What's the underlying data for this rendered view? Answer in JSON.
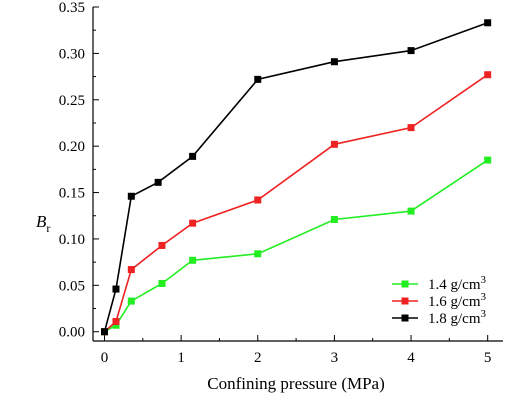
{
  "chart_data": {
    "type": "line",
    "title": "",
    "xlabel": "Confining pressure (MPa)",
    "ylabel": "B",
    "ylabel_subscript": "r",
    "xlim": [
      -0.15,
      5.2
    ],
    "ylim": [
      -0.01,
      0.35
    ],
    "x_ticks": [
      "0",
      "1",
      "2",
      "3",
      "4",
      "5"
    ],
    "y_ticks": [
      "0.00",
      "0.05",
      "0.10",
      "0.15",
      "0.20",
      "0.25",
      "0.30",
      "0.35"
    ],
    "grid": false,
    "legend_position": "bottom-right",
    "series": [
      {
        "name": "1.4 g/cm3",
        "label_main": "1.4 g/cm",
        "label_sup": "3",
        "color": "#22ee22",
        "x": [
          0,
          0.15,
          0.35,
          0.75,
          1.15,
          2,
          3,
          4,
          5
        ],
        "y": [
          0.0,
          0.007,
          0.033,
          0.052,
          0.077,
          0.084,
          0.121,
          0.13,
          0.185
        ]
      },
      {
        "name": "1.6 g/cm3",
        "label_main": "1.6 g/cm",
        "label_sup": "3",
        "color": "#ee2222",
        "x": [
          0,
          0.15,
          0.35,
          0.75,
          1.15,
          2,
          3,
          4,
          5
        ],
        "y": [
          0.0,
          0.011,
          0.067,
          0.093,
          0.117,
          0.142,
          0.202,
          0.22,
          0.277
        ]
      },
      {
        "name": "1.8 g/cm3",
        "label_main": "1.8 g/cm",
        "label_sup": "3",
        "color": "#000000",
        "x": [
          0,
          0.15,
          0.35,
          0.7,
          1.15,
          2,
          3,
          4,
          5
        ],
        "y": [
          0.0,
          0.046,
          0.146,
          0.161,
          0.189,
          0.272,
          0.291,
          0.303,
          0.333
        ]
      }
    ]
  }
}
